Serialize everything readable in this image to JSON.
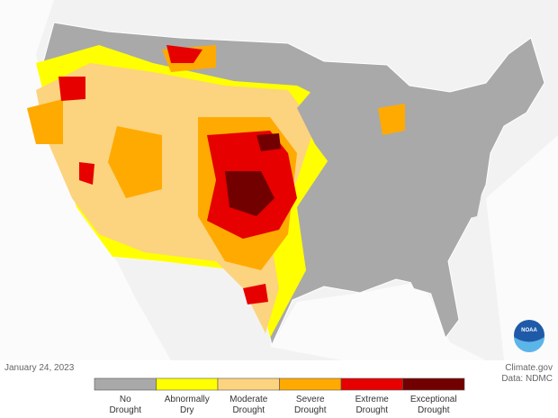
{
  "date": "January 24, 2023",
  "credit": [
    "Climate.gov",
    "Data: NDMC"
  ],
  "logo": "NOAA",
  "legend": [
    {
      "lines": [
        "No",
        "Drought"
      ],
      "color": "#a9a9a9"
    },
    {
      "lines": [
        "Abnormally",
        "Dry"
      ],
      "color": "#ffff00"
    },
    {
      "lines": [
        "Moderate",
        "Drought"
      ],
      "color": "#fcd37f"
    },
    {
      "lines": [
        "Severe",
        "Drought"
      ],
      "color": "#ffaa00"
    },
    {
      "lines": [
        "Extreme",
        "Drought"
      ],
      "color": "#e60000"
    },
    {
      "lines": [
        "Exceptional",
        "Drought"
      ],
      "color": "#730000"
    }
  ]
}
